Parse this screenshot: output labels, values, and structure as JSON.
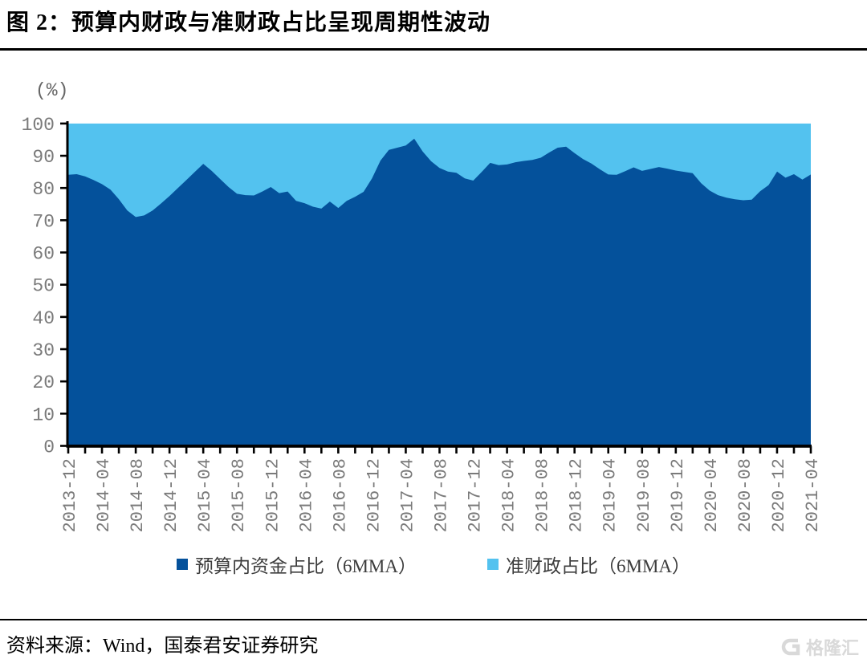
{
  "page": {
    "title": "图 2：预算内财政与准财政占比呈现周期性波动",
    "source_label": "资料来源：Wind，国泰君安证券研究",
    "watermark": "格隆汇"
  },
  "colors": {
    "budget_fill": "#04519B",
    "quasi_fill": "#53C2EF",
    "axis": "#000000",
    "tick_label": "#7a7a7a",
    "legend_text": "#3d3d3d",
    "title_rule": "#000000"
  },
  "chart_data": {
    "type": "area",
    "stacked_percent": true,
    "title": "图 2：预算内财政与准财政占比呈现周期性波动",
    "unit": "(%)",
    "ylim": [
      0,
      100
    ],
    "ytick_step": 10,
    "y_ticks": [
      0,
      10,
      20,
      30,
      40,
      50,
      60,
      70,
      80,
      90,
      100
    ],
    "grid": false,
    "legend_position": "bottom",
    "x_start": "2013-12",
    "x_end": "2021-04",
    "x_step_months": 1,
    "x_tick_labels": [
      "2013-12",
      "2014-04",
      "2014-08",
      "2014-12",
      "2015-04",
      "2015-08",
      "2015-12",
      "2016-04",
      "2016-08",
      "2016-12",
      "2017-04",
      "2017-08",
      "2017-12",
      "2018-04",
      "2018-08",
      "2018-12",
      "2019-04",
      "2019-08",
      "2019-12",
      "2020-04",
      "2020-08",
      "2020-12",
      "2021-04"
    ],
    "series": [
      {
        "name": "预算内资金占比（6MMA）",
        "color": "#04519B",
        "values": [
          84.1,
          84.3,
          83.6,
          82.5,
          81.2,
          79.5,
          76.5,
          73.0,
          71.0,
          71.5,
          73.0,
          75.2,
          77.5,
          80.0,
          82.5,
          85.0,
          87.5,
          85.3,
          82.8,
          80.3,
          78.2,
          77.8,
          77.7,
          78.9,
          80.3,
          78.4,
          78.9,
          76.0,
          75.3,
          74.2,
          73.6,
          75.8,
          73.8,
          76.0,
          77.3,
          78.8,
          83.0,
          88.5,
          91.8,
          92.5,
          93.2,
          95.3,
          91.3,
          88.3,
          86.2,
          85.1,
          84.7,
          83.0,
          82.3,
          85.0,
          87.8,
          87.1,
          87.3,
          88.0,
          88.4,
          88.7,
          89.4,
          91.0,
          92.5,
          92.8,
          90.8,
          89.0,
          87.6,
          85.8,
          84.2,
          84.1,
          85.2,
          86.4,
          85.3,
          85.9,
          86.5,
          86.0,
          85.4,
          85.0,
          84.6,
          81.5,
          79.2,
          77.8,
          77.0,
          76.5,
          76.2,
          76.4,
          79.0,
          80.9,
          85.1,
          83.2,
          84.3,
          82.6,
          84.2
        ]
      },
      {
        "name": "准财政占比（6MMA）",
        "color": "#53C2EF",
        "derived": "100 minus 预算内资金占比（6MMA）, stacked to 100%",
        "values": [
          15.9,
          15.7,
          16.4,
          17.5,
          18.8,
          20.5,
          23.5,
          27.0,
          29.0,
          28.5,
          27.0,
          24.8,
          22.5,
          20.0,
          17.5,
          15.0,
          12.5,
          14.7,
          17.2,
          19.7,
          21.8,
          22.2,
          22.3,
          21.1,
          19.7,
          21.6,
          21.1,
          24.0,
          24.7,
          25.8,
          26.4,
          24.2,
          26.2,
          24.0,
          22.7,
          21.2,
          17.0,
          11.5,
          8.2,
          7.5,
          6.8,
          4.7,
          8.7,
          11.7,
          13.8,
          14.9,
          15.3,
          17.0,
          17.7,
          15.0,
          12.2,
          12.9,
          12.7,
          12.0,
          11.6,
          11.3,
          10.6,
          9.0,
          7.5,
          7.2,
          9.2,
          11.0,
          12.4,
          14.2,
          15.8,
          15.9,
          14.8,
          13.6,
          14.7,
          14.1,
          13.5,
          14.0,
          14.6,
          15.0,
          15.4,
          18.5,
          20.8,
          22.2,
          23.0,
          23.5,
          23.8,
          23.6,
          21.0,
          19.1,
          14.9,
          16.8,
          15.7,
          17.4,
          15.8
        ]
      }
    ]
  }
}
